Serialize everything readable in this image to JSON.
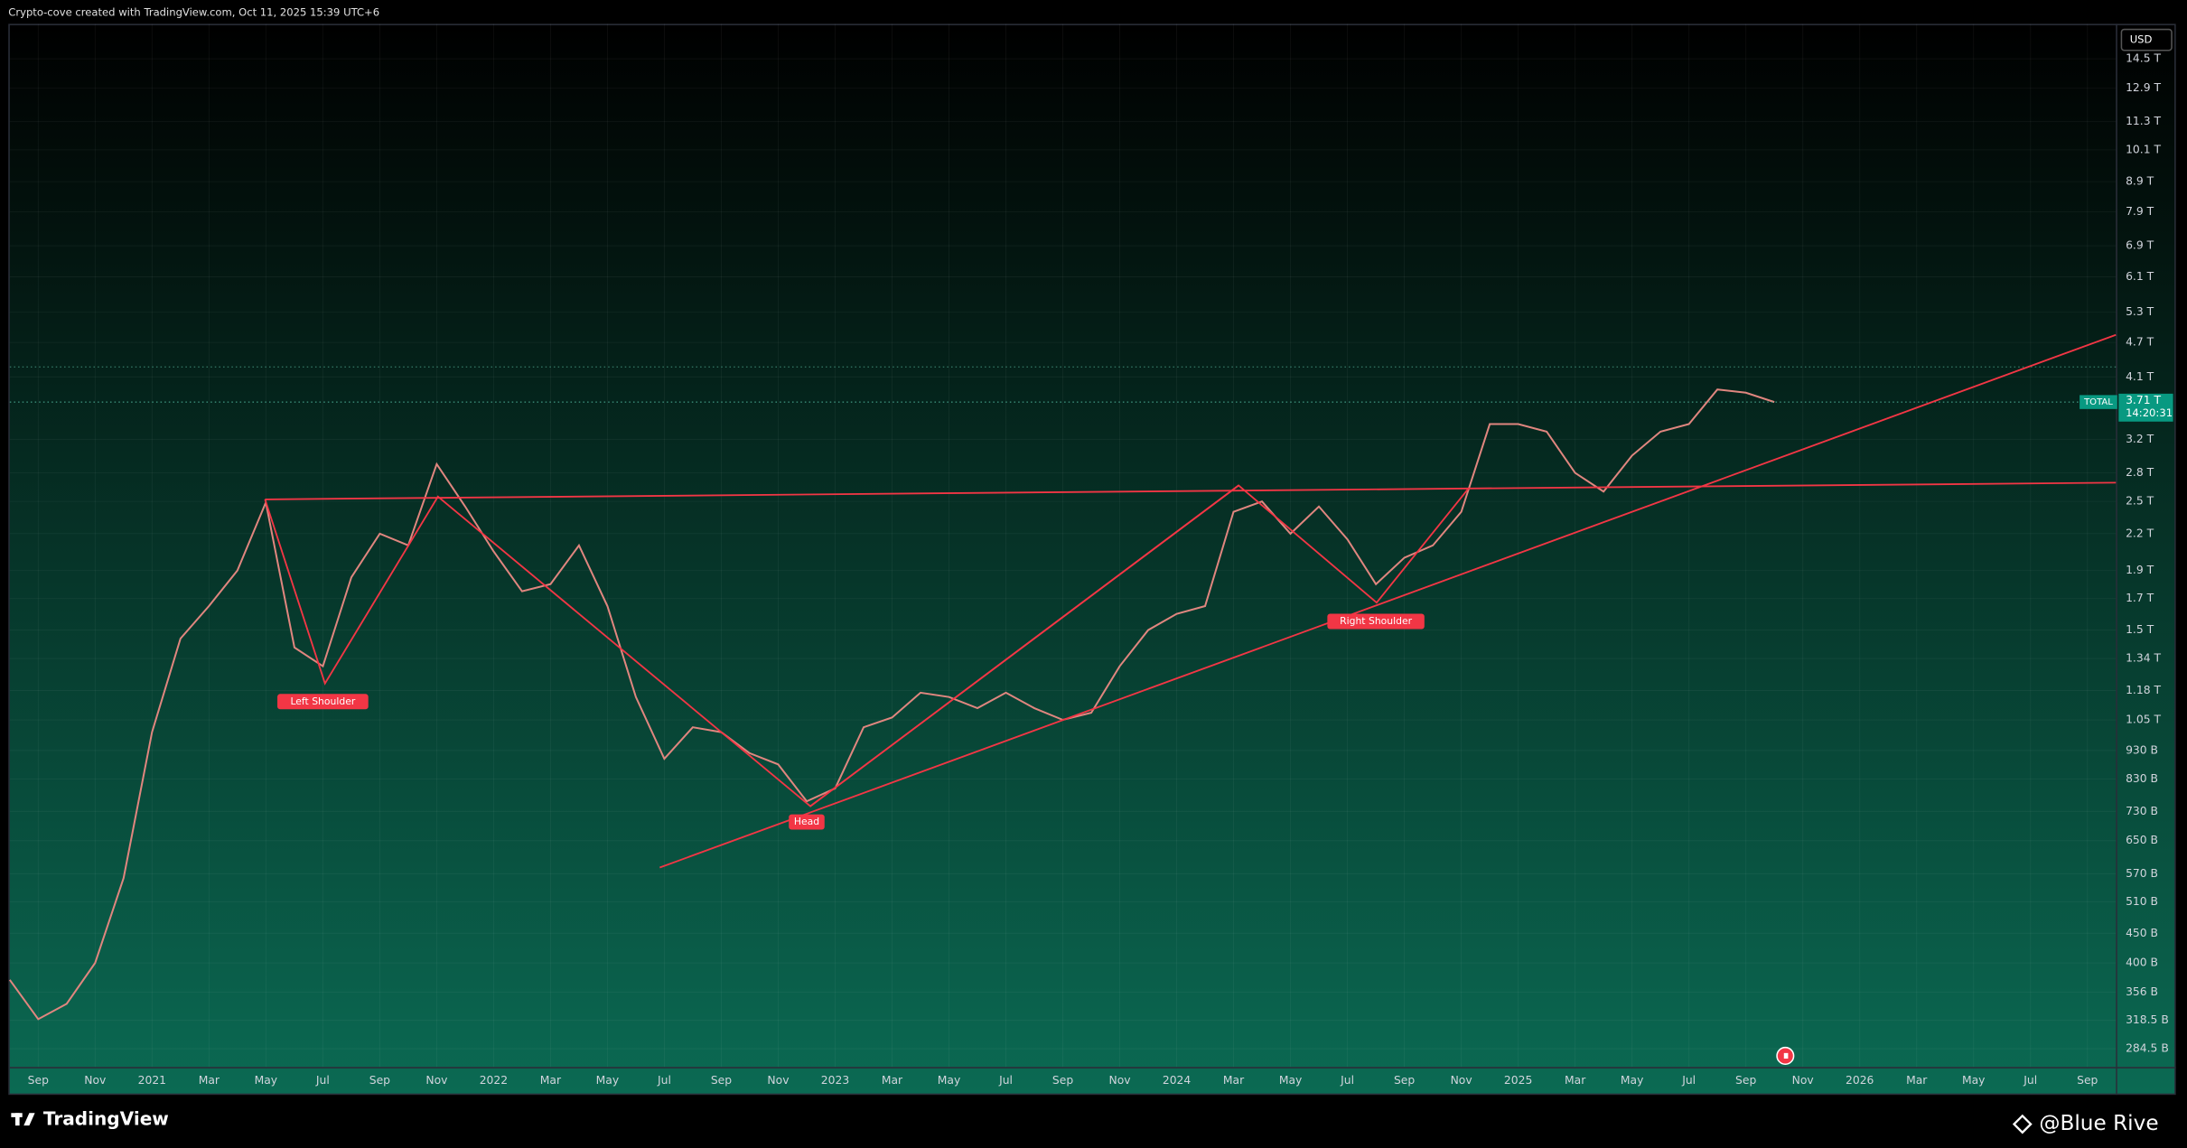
{
  "header": {
    "text": "Crypto-cove created with TradingView.com, Oct 11, 2025 15:39 UTC+6"
  },
  "footer": {
    "brand": "TradingView",
    "watermark": "@Blue Rive"
  },
  "chart_data": {
    "type": "line",
    "currency": "USD",
    "log_scale": true,
    "grid": true,
    "countdown": "14:20:31",
    "last_value_label": "3.71 T",
    "x": [
      "2020-08",
      "2020-09",
      "2020-10",
      "2020-11",
      "2020-12",
      "2021-01",
      "2021-02",
      "2021-03",
      "2021-04",
      "2021-05",
      "2021-06",
      "2021-07",
      "2021-08",
      "2021-09",
      "2021-10",
      "2021-11",
      "2021-12",
      "2022-01",
      "2022-02",
      "2022-03",
      "2022-04",
      "2022-05",
      "2022-06",
      "2022-07",
      "2022-08",
      "2022-09",
      "2022-10",
      "2022-11",
      "2022-12",
      "2023-01",
      "2023-02",
      "2023-03",
      "2023-04",
      "2023-05",
      "2023-06",
      "2023-07",
      "2023-08",
      "2023-09",
      "2023-10",
      "2023-11",
      "2023-12",
      "2024-01",
      "2024-02",
      "2024-03",
      "2024-04",
      "2024-05",
      "2024-06",
      "2024-07",
      "2024-08",
      "2024-09",
      "2024-10",
      "2024-11",
      "2024-12",
      "2025-01",
      "2025-02",
      "2025-03",
      "2025-04",
      "2025-05",
      "2025-06",
      "2025-07",
      "2025-08",
      "2025-09",
      "2025-10"
    ],
    "series": [
      {
        "name": "TOTAL",
        "color": "#e0867f",
        "values": [
          374000000000.0,
          320000000000.0,
          340000000000.0,
          400000000000.0,
          560000000000.0,
          1000000000000.0,
          1450000000000.0,
          1650000000000.0,
          1900000000000.0,
          2490000000000.0,
          1400000000000.0,
          1300000000000.0,
          1850000000000.0,
          2200000000000.0,
          2100000000000.0,
          2900000000000.0,
          2450000000000.0,
          2050000000000.0,
          1750000000000.0,
          1800000000000.0,
          2100000000000.0,
          1650000000000.0,
          1150000000000.0,
          900000000000.0,
          1020000000000.0,
          1000000000000.0,
          920000000000.0,
          880000000000.0,
          760000000000.0,
          800000000000.0,
          1020000000000.0,
          1060000000000.0,
          1170000000000.0,
          1150000000000.0,
          1100000000000.0,
          1170000000000.0,
          1100000000000.0,
          1050000000000.0,
          1080000000000.0,
          1300000000000.0,
          1500000000000.0,
          1600000000000.0,
          1650000000000.0,
          2400000000000.0,
          2500000000000.0,
          2200000000000.0,
          2450000000000.0,
          2150000000000.0,
          1800000000000.0,
          2000000000000.0,
          2100000000000.0,
          2400000000000.0,
          3400000000000.0,
          3400000000000.0,
          3300000000000.0,
          2800000000000.0,
          2600000000000.0,
          3000000000000.0,
          3300000000000.0,
          3400000000000.0,
          3900000000000.0,
          3850000000000.0,
          3710000000000.0
        ]
      }
    ],
    "xlim": [
      "2020-08",
      "2026-10"
    ],
    "xticks": [
      {
        "value": "2020-09",
        "label": "Sep"
      },
      {
        "value": "2020-11",
        "label": "Nov"
      },
      {
        "value": "2021-01",
        "label": "2021"
      },
      {
        "value": "2021-03",
        "label": "Mar"
      },
      {
        "value": "2021-05",
        "label": "May"
      },
      {
        "value": "2021-07",
        "label": "Jul"
      },
      {
        "value": "2021-09",
        "label": "Sep"
      },
      {
        "value": "2021-11",
        "label": "Nov"
      },
      {
        "value": "2022-01",
        "label": "2022"
      },
      {
        "value": "2022-03",
        "label": "Mar"
      },
      {
        "value": "2022-05",
        "label": "May"
      },
      {
        "value": "2022-07",
        "label": "Jul"
      },
      {
        "value": "2022-09",
        "label": "Sep"
      },
      {
        "value": "2022-11",
        "label": "Nov"
      },
      {
        "value": "2023-01",
        "label": "2023"
      },
      {
        "value": "2023-03",
        "label": "Mar"
      },
      {
        "value": "2023-05",
        "label": "May"
      },
      {
        "value": "2023-07",
        "label": "Jul"
      },
      {
        "value": "2023-09",
        "label": "Sep"
      },
      {
        "value": "2023-11",
        "label": "Nov"
      },
      {
        "value": "2024-01",
        "label": "2024"
      },
      {
        "value": "2024-03",
        "label": "Mar"
      },
      {
        "value": "2024-05",
        "label": "May"
      },
      {
        "value": "2024-07",
        "label": "Jul"
      },
      {
        "value": "2024-09",
        "label": "Sep"
      },
      {
        "value": "2024-11",
        "label": "Nov"
      },
      {
        "value": "2025-01",
        "label": "2025"
      },
      {
        "value": "2025-03",
        "label": "Mar"
      },
      {
        "value": "2025-05",
        "label": "May"
      },
      {
        "value": "2025-07",
        "label": "Jul"
      },
      {
        "value": "2025-09",
        "label": "Sep"
      },
      {
        "value": "2025-11",
        "label": "Nov"
      },
      {
        "value": "2026-01",
        "label": "2026"
      },
      {
        "value": "2026-03",
        "label": "Mar"
      },
      {
        "value": "2026-05",
        "label": "May"
      },
      {
        "value": "2026-07",
        "label": "Jul"
      },
      {
        "value": "2026-09",
        "label": "Sep"
      }
    ],
    "ylim": [
      264600000000.0,
      16660000000000.0
    ],
    "yticks": [
      {
        "value": 14500000000000.0,
        "label": "14.5 T"
      },
      {
        "value": 12900000000000.0,
        "label": "12.9 T"
      },
      {
        "value": 11300000000000.0,
        "label": "11.3 T"
      },
      {
        "value": 10100000000000.0,
        "label": "10.1 T"
      },
      {
        "value": 8900000000000.0,
        "label": "8.9 T"
      },
      {
        "value": 7900000000000.0,
        "label": "7.9 T"
      },
      {
        "value": 6900000000000.0,
        "label": "6.9 T"
      },
      {
        "value": 6100000000000.0,
        "label": "6.1 T"
      },
      {
        "value": 5300000000000.0,
        "label": "5.3 T"
      },
      {
        "value": 4700000000000.0,
        "label": "4.7 T"
      },
      {
        "value": 4100000000000.0,
        "label": "4.1 T"
      },
      {
        "value": 3200000000000.0,
        "label": "3.2 T"
      },
      {
        "value": 2800000000000.0,
        "label": "2.8 T"
      },
      {
        "value": 2500000000000.0,
        "label": "2.5 T"
      },
      {
        "value": 2200000000000.0,
        "label": "2.2 T"
      },
      {
        "value": 1900000000000.0,
        "label": "1.9 T"
      },
      {
        "value": 1700000000000.0,
        "label": "1.7 T"
      },
      {
        "value": 1500000000000.0,
        "label": "1.5 T"
      },
      {
        "value": 1340000000000.0,
        "label": "1.34 T"
      },
      {
        "value": 1180000000000.0,
        "label": "1.18 T"
      },
      {
        "value": 1050000000000.0,
        "label": "1.05 T"
      },
      {
        "value": 930000000000.0,
        "label": "930 B"
      },
      {
        "value": 830000000000.0,
        "label": "830 B"
      },
      {
        "value": 730000000000.0,
        "label": "730 B"
      },
      {
        "value": 650000000000.0,
        "label": "650 B"
      },
      {
        "value": 570000000000.0,
        "label": "570 B"
      },
      {
        "value": 510000000000.0,
        "label": "510 B"
      },
      {
        "value": 450000000000.0,
        "label": "450 B"
      },
      {
        "value": 400000000000.0,
        "label": "400 B"
      },
      {
        "value": 356000000000.0,
        "label": "356 B"
      },
      {
        "value": 318500000000.0,
        "label": "318.5 B"
      },
      {
        "value": 284500000000.0,
        "label": "284.5 B"
      }
    ],
    "annotations": [
      {
        "text": "Left Shoulder",
        "x": "2021-07",
        "y": 1200000000000.0
      },
      {
        "text": "Head",
        "x": "2022-12",
        "y": 744000000000.0
      },
      {
        "text": "Right Shoulder",
        "x": "2024-08",
        "y": 1650000000000.0
      }
    ]
  }
}
